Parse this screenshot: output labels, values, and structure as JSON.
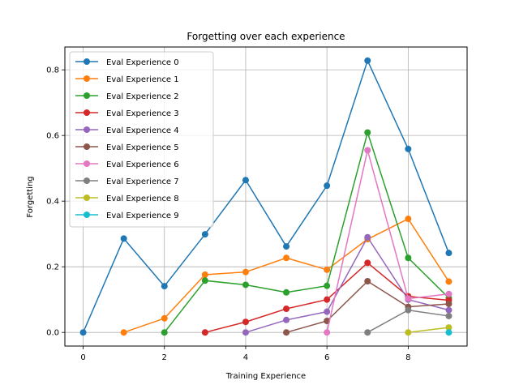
{
  "chart_data": {
    "type": "line",
    "title": "Forgetting over each experience",
    "xlabel": "Training Experience",
    "ylabel": "Forgetting",
    "xlim": [
      -0.45,
      9.45
    ],
    "ylim": [
      -0.0415,
      0.8695
    ],
    "xticks": [
      0,
      2,
      4,
      6,
      8
    ],
    "yticks": [
      0.0,
      0.2,
      0.4,
      0.6,
      0.8
    ],
    "xtick_labels": [
      "0",
      "2",
      "4",
      "6",
      "8"
    ],
    "ytick_labels": [
      "0.0",
      "0.2",
      "0.4",
      "0.6",
      "0.8"
    ],
    "grid": true,
    "legend_position": "top-left",
    "series": [
      {
        "name": "Eval Experience 0",
        "color": "#1f77b4",
        "x": [
          0,
          1,
          2,
          3,
          4,
          5,
          6,
          7,
          8,
          9
        ],
        "y": [
          0.0,
          0.286,
          0.141,
          0.299,
          0.464,
          0.262,
          0.447,
          0.828,
          0.559,
          0.242
        ]
      },
      {
        "name": "Eval Experience 1",
        "color": "#ff7f0e",
        "x": [
          1,
          2,
          3,
          4,
          5,
          6,
          7,
          8,
          9
        ],
        "y": [
          0.0,
          0.043,
          0.176,
          0.184,
          0.227,
          0.191,
          0.284,
          0.346,
          0.155
        ]
      },
      {
        "name": "Eval Experience 2",
        "color": "#2ca02c",
        "x": [
          2,
          3,
          4,
          5,
          6,
          7,
          8,
          9
        ],
        "y": [
          0.0,
          0.158,
          0.145,
          0.122,
          0.142,
          0.609,
          0.227,
          0.105
        ]
      },
      {
        "name": "Eval Experience 3",
        "color": "#d62728",
        "x": [
          3,
          4,
          5,
          6,
          7,
          8,
          9
        ],
        "y": [
          0.0,
          0.032,
          0.072,
          0.1,
          0.212,
          0.11,
          0.098
        ]
      },
      {
        "name": "Eval Experience 4",
        "color": "#9467bd",
        "x": [
          4,
          5,
          6,
          7,
          8,
          9
        ],
        "y": [
          0.0,
          0.038,
          0.063,
          0.29,
          0.1,
          0.068
        ]
      },
      {
        "name": "Eval Experience 5",
        "color": "#8c564b",
        "x": [
          5,
          6,
          7,
          8,
          9
        ],
        "y": [
          0.0,
          0.035,
          0.156,
          0.078,
          0.087
        ]
      },
      {
        "name": "Eval Experience 6",
        "color": "#e377c2",
        "x": [
          6,
          7,
          8,
          9
        ],
        "y": [
          0.0,
          0.555,
          0.103,
          0.117
        ]
      },
      {
        "name": "Eval Experience 7",
        "color": "#7f7f7f",
        "x": [
          7,
          8,
          9
        ],
        "y": [
          0.0,
          0.068,
          0.05
        ]
      },
      {
        "name": "Eval Experience 8",
        "color": "#bcbd22",
        "x": [
          8,
          9
        ],
        "y": [
          0.0,
          0.015
        ]
      },
      {
        "name": "Eval Experience 9",
        "color": "#17becf",
        "x": [
          9
        ],
        "y": [
          0.0
        ]
      }
    ]
  }
}
